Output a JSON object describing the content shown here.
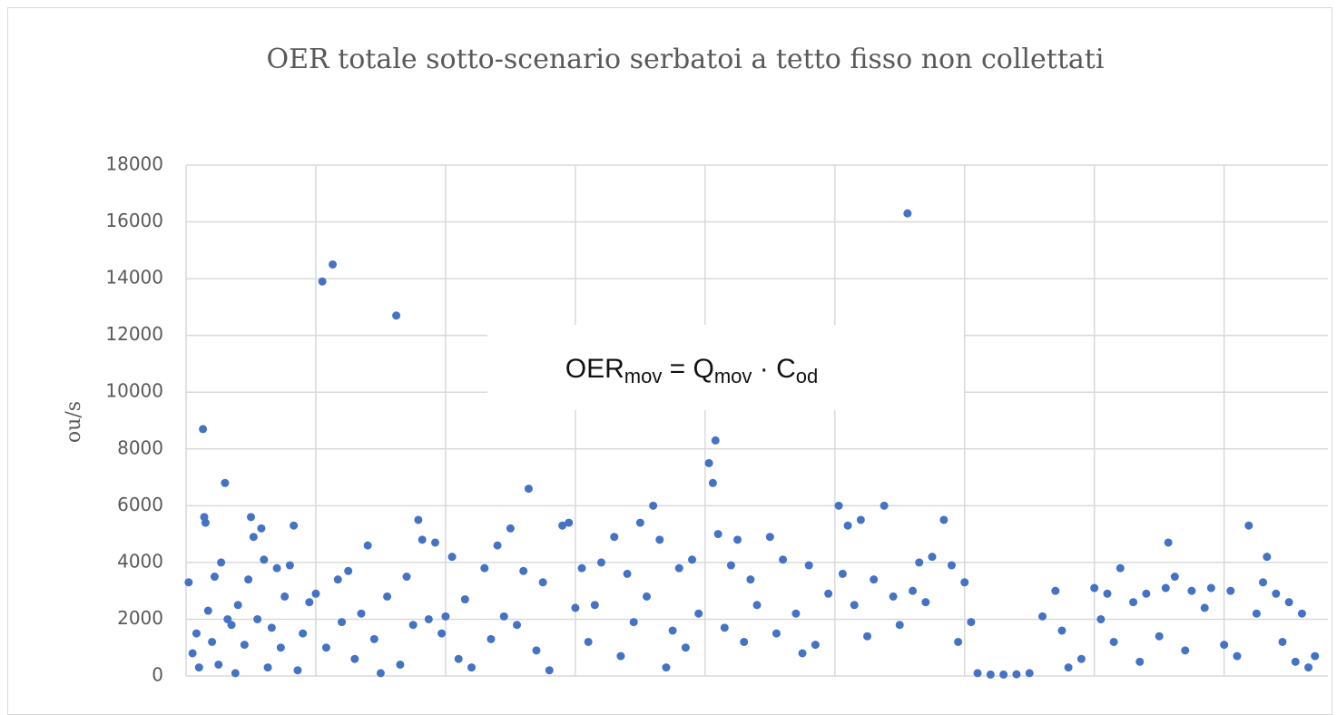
{
  "chart_data": {
    "type": "scatter",
    "title": "OER totale sotto-scenario serbatoi a tetto fisso non collettati",
    "y_label": "ou/s",
    "annotation": [
      "OER",
      "mov",
      " = Q",
      "mov",
      " · C",
      "od"
    ],
    "xlim": [
      0,
      8.8
    ],
    "xticks": [
      0,
      1,
      2,
      3,
      4,
      5,
      6,
      7,
      8
    ],
    "ylim": [
      0,
      18000
    ],
    "yticks": [
      0,
      2000,
      4000,
      6000,
      8000,
      10000,
      12000,
      14000,
      16000,
      18000
    ],
    "grid": true,
    "series": [
      {
        "name": "OER",
        "color": "#4472c4",
        "x": [
          0.02,
          0.05,
          0.08,
          0.1,
          0.13,
          0.14,
          0.15,
          0.17,
          0.2,
          0.22,
          0.25,
          0.27,
          0.3,
          0.32,
          0.35,
          0.38,
          0.4,
          0.45,
          0.48,
          0.5,
          0.52,
          0.55,
          0.58,
          0.6,
          0.63,
          0.66,
          0.7,
          0.73,
          0.76,
          0.8,
          0.83,
          0.86,
          0.9,
          0.95,
          1.0,
          1.05,
          1.08,
          1.13,
          1.17,
          1.2,
          1.25,
          1.3,
          1.35,
          1.4,
          1.45,
          1.5,
          1.55,
          1.62,
          1.65,
          1.7,
          1.75,
          1.79,
          1.82,
          1.87,
          1.92,
          1.97,
          2.0,
          2.05,
          2.1,
          2.15,
          2.2,
          2.3,
          2.35,
          2.4,
          2.45,
          2.5,
          2.55,
          2.6,
          2.64,
          2.7,
          2.75,
          2.8,
          2.9,
          2.95,
          3.0,
          3.05,
          3.1,
          3.15,
          3.2,
          3.3,
          3.35,
          3.4,
          3.45,
          3.5,
          3.55,
          3.6,
          3.65,
          3.7,
          3.75,
          3.8,
          3.85,
          3.9,
          3.95,
          4.03,
          4.06,
          4.08,
          4.1,
          4.15,
          4.2,
          4.25,
          4.3,
          4.35,
          4.4,
          4.5,
          4.55,
          4.6,
          4.7,
          4.75,
          4.8,
          4.85,
          4.95,
          5.03,
          5.06,
          5.1,
          5.15,
          5.2,
          5.25,
          5.3,
          5.38,
          5.45,
          5.5,
          5.56,
          5.6,
          5.65,
          5.7,
          5.75,
          5.84,
          5.9,
          5.95,
          6.0,
          6.05,
          6.1,
          6.2,
          6.3,
          6.4,
          6.5,
          6.6,
          6.7,
          6.75,
          6.8,
          6.9,
          7.0,
          7.05,
          7.1,
          7.15,
          7.2,
          7.3,
          7.35,
          7.4,
          7.5,
          7.55,
          7.57,
          7.62,
          7.7,
          7.75,
          7.85,
          7.9,
          8.0,
          8.05,
          8.1,
          8.19,
          8.25,
          8.3,
          8.33,
          8.4,
          8.45,
          8.5,
          8.55,
          8.6,
          8.65,
          8.7
        ],
        "values": [
          3300,
          800,
          1500,
          300,
          8700,
          5600,
          5400,
          2300,
          1200,
          3500,
          400,
          4000,
          6800,
          2000,
          1800,
          100,
          2500,
          1100,
          3400,
          5600,
          4900,
          2000,
          5200,
          4100,
          300,
          1700,
          3800,
          1000,
          2800,
          3900,
          5300,
          200,
          1500,
          2600,
          2900,
          13900,
          1000,
          14500,
          3400,
          1900,
          3700,
          600,
          2200,
          4600,
          1300,
          100,
          2800,
          12700,
          400,
          3500,
          1800,
          5500,
          4800,
          2000,
          4700,
          1500,
          2100,
          4200,
          600,
          2700,
          300,
          3800,
          1300,
          4600,
          2100,
          5200,
          1800,
          3700,
          6600,
          900,
          3300,
          200,
          5300,
          5400,
          2400,
          3800,
          1200,
          2500,
          4000,
          4900,
          700,
          3600,
          1900,
          5400,
          2800,
          6000,
          4800,
          300,
          1600,
          3800,
          1000,
          4100,
          2200,
          7500,
          6800,
          8300,
          5000,
          1700,
          3900,
          4800,
          1200,
          3400,
          2500,
          4900,
          1500,
          4100,
          2200,
          800,
          3900,
          1100,
          2900,
          6000,
          3600,
          5300,
          2500,
          5500,
          1400,
          3400,
          6000,
          2800,
          1800,
          16300,
          3000,
          4000,
          2600,
          4200,
          5500,
          3900,
          1200,
          3300,
          1900,
          100,
          50,
          50,
          60,
          100,
          2100,
          3000,
          1600,
          300,
          600,
          3100,
          2000,
          2900,
          1200,
          3800,
          2600,
          500,
          2900,
          1400,
          3100,
          4700,
          3500,
          900,
          3000,
          2400,
          3100,
          1100,
          3000,
          700,
          5300,
          2200,
          3300,
          4200,
          2900,
          1200,
          2600,
          500,
          2200,
          300,
          700
        ]
      }
    ]
  }
}
